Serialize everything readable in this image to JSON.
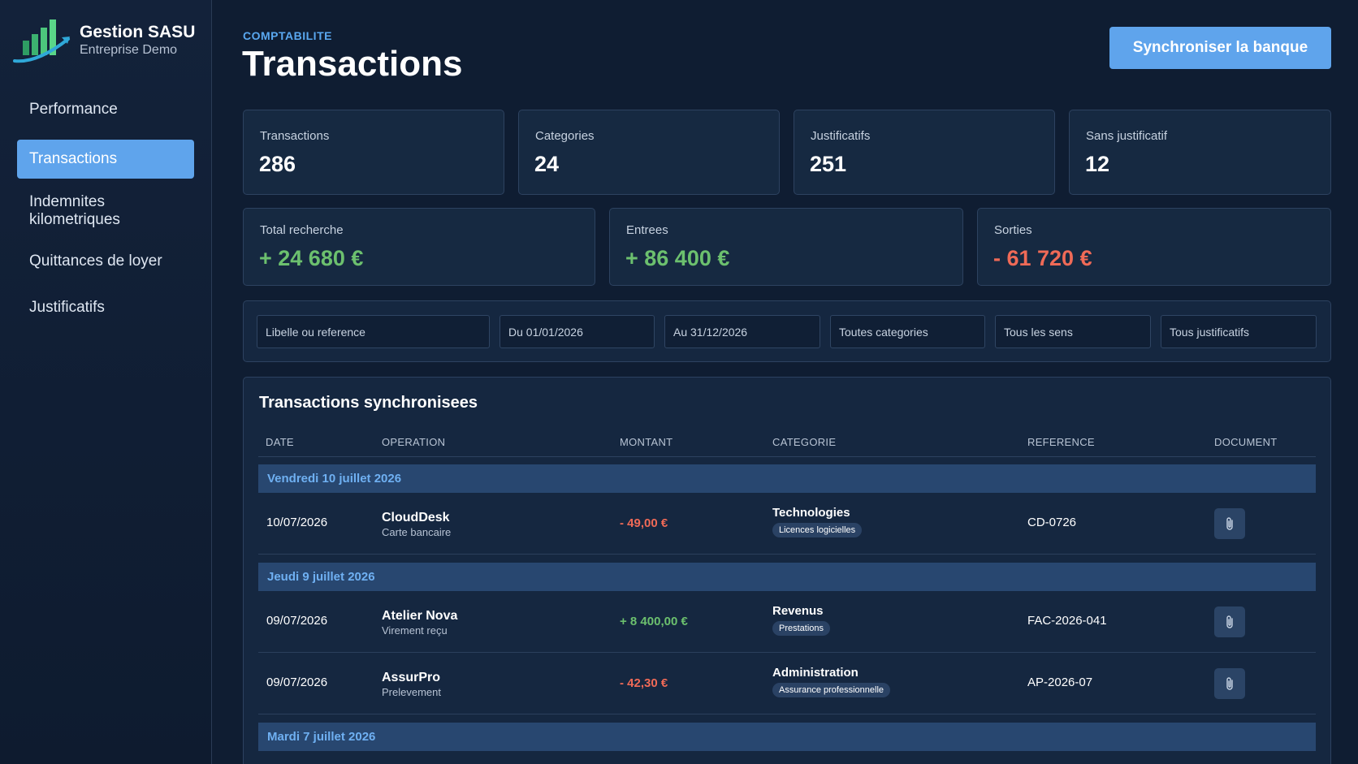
{
  "brand": {
    "name": "Gestion SASU",
    "subtitle": "Entreprise Demo"
  },
  "sidebar": {
    "items": [
      {
        "label": "Performance",
        "active": false
      },
      {
        "label": "Transactions",
        "active": true
      },
      {
        "label": "Indemnites kilometriques",
        "active": false
      },
      {
        "label": "Quittances de loyer",
        "active": false
      },
      {
        "label": "Justificatifs",
        "active": false
      }
    ]
  },
  "header": {
    "eyebrow": "COMPTABILITE",
    "title": "Transactions",
    "sync_label": "Synchroniser la banque"
  },
  "stats": [
    {
      "label": "Transactions",
      "value": "286"
    },
    {
      "label": "Categories",
      "value": "24"
    },
    {
      "label": "Justificatifs",
      "value": "251"
    },
    {
      "label": "Sans justificatif",
      "value": "12"
    }
  ],
  "totals": [
    {
      "label": "Total recherche",
      "value": "+ 24 680 €"
    },
    {
      "label": "Entrees",
      "value": "+ 86 400 €"
    },
    {
      "label": "Sorties",
      "value": "- 61 720 €"
    }
  ],
  "filters": {
    "search": "Libelle ou reference",
    "date_from": "Du 01/01/2026",
    "date_to": "Au 31/12/2026",
    "category": "Toutes categories",
    "direction": "Tous les sens",
    "documents": "Tous justificatifs"
  },
  "table": {
    "title": "Transactions synchronisees",
    "columns": [
      "DATE",
      "OPERATION",
      "MONTANT",
      "CATEGORIE",
      "REFERENCE",
      "DOCUMENT"
    ],
    "groups": [
      "Vendredi 10 juillet 2026",
      "Jeudi 9 juillet 2026",
      "Mardi 7 juillet 2026"
    ],
    "rows": [
      {
        "date": "10/07/2026",
        "operation": "CloudDesk",
        "operation_type": "Carte bancaire",
        "amount": "- 49,00 €",
        "category": "Technologies",
        "subcategory": "Licences logicielles",
        "reference": "CD-0726"
      },
      {
        "date": "09/07/2026",
        "operation": "Atelier Nova",
        "operation_type": "Virement reçu",
        "amount": "+ 8 400,00 €",
        "category": "Revenus",
        "subcategory": "Prestations",
        "reference": "FAC-2026-041"
      },
      {
        "date": "09/07/2026",
        "operation": "AssurPro",
        "operation_type": "Prelevement",
        "amount": "- 42,30 €",
        "category": "Administration",
        "subcategory": "Assurance professionnelle",
        "reference": "AP-2026-07"
      }
    ]
  },
  "icons": {
    "logo": "bar-chart-growth-logo",
    "document": "paperclip-icon"
  },
  "colors": {
    "accent": "#5fa4ec",
    "positive": "#6cc06e",
    "negative": "#ef6a57",
    "background": "#0f1d32"
  }
}
